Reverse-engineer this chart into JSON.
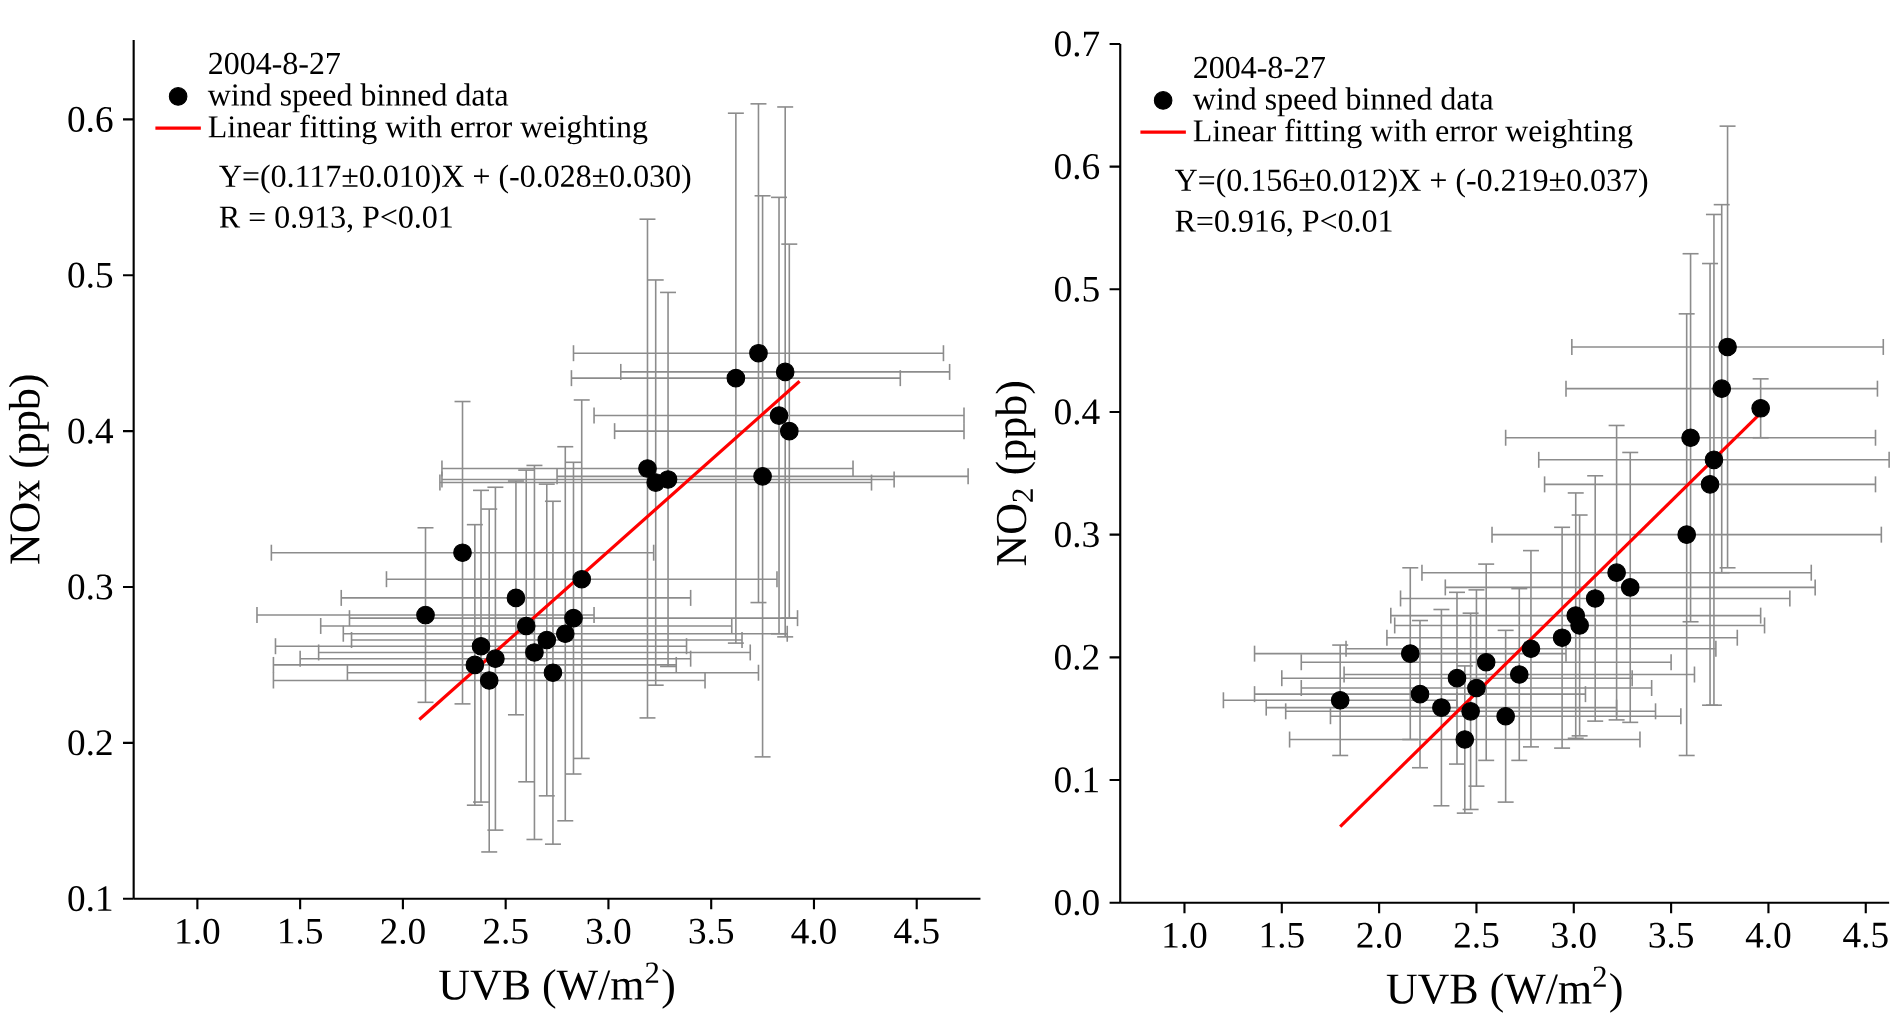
{
  "chart_data": [
    {
      "type": "scatter",
      "xlabel": "UVB (W/m$^{2}$)",
      "ylabel": "NOx (ppb)",
      "legend_title": "2004-8-27",
      "legend": "top left",
      "annotations": [
        "Y=(0.117±0.010)X + (-0.028±0.030)",
        "R = 0.913, P<0.01"
      ],
      "xlim": [
        0.69,
        4.81
      ],
      "ylim": [
        0.1,
        0.651
      ],
      "xticks": [
        {
          "value": 1,
          "label": "1.0"
        },
        1.5,
        {
          "value": 2,
          "label": "2.0"
        },
        2.5,
        {
          "value": 3,
          "label": "3.0"
        },
        3.5,
        {
          "value": 4,
          "label": "4.0"
        },
        4.5
      ],
      "yticks": [
        0.1,
        0.2,
        0.3,
        0.4,
        0.5,
        0.6
      ],
      "series": [
        {
          "name": "wind speed binned data",
          "marker": "circle",
          "color": "#000000",
          "x": [
            2.11,
            2.29,
            2.55,
            2.87,
            2.35,
            2.38,
            2.45,
            2.42,
            2.6,
            2.64,
            2.7,
            2.73,
            2.79,
            2.83,
            3.19,
            3.23,
            3.29,
            3.62,
            3.73,
            3.86,
            3.83,
            3.88,
            3.75
          ],
          "values": [
            0.282,
            0.322,
            0.293,
            0.305,
            0.25,
            0.262,
            0.254,
            0.24,
            0.275,
            0.258,
            0.266,
            0.245,
            0.27,
            0.28,
            0.376,
            0.367,
            0.369,
            0.434,
            0.45,
            0.438,
            0.41,
            0.4,
            0.371
          ],
          "xerrors": [
            0.82,
            0.93,
            0.85,
            0.95,
            0.98,
            1.0,
            0.95,
            1.05,
            1.0,
            1.05,
            0.95,
            1.0,
            1.08,
            1.09,
            1.0,
            1.05,
            1.1,
            0.8,
            0.9,
            0.8,
            0.9,
            0.85,
            1.0
          ],
          "errors": [
            0.056,
            0.097,
            0.075,
            0.115,
            0.09,
            0.1,
            0.11,
            0.11,
            0.1,
            0.12,
            0.1,
            0.11,
            0.12,
            0.1,
            0.16,
            0.13,
            0.12,
            0.17,
            0.16,
            0.17,
            0.14,
            0.12,
            0.18
          ]
        },
        {
          "name": "Linear fitting with error weighting",
          "type": "line",
          "marker": "none",
          "color": "#ff0000",
          "x": [
            2.08,
            3.93
          ],
          "values": [
            0.215,
            0.432
          ]
        }
      ]
    },
    {
      "type": "scatter",
      "xlabel": "UVB (W/m$^{2}$)",
      "ylabel": "NO$_{2}$ (ppb)",
      "legend_title": "2004-8-27",
      "legend": "top left",
      "annotations": [
        "Y=(0.156±0.012)X + (-0.219±0.037)",
        "R=0.916, P<0.01"
      ],
      "xlim": [
        0.67,
        4.62
      ],
      "ylim": [
        0,
        0.7
      ],
      "xticks": [
        {
          "value": 1,
          "label": "1.0"
        },
        1.5,
        {
          "value": 2,
          "label": "2.0"
        },
        2.5,
        {
          "value": 3,
          "label": "3.0"
        },
        3.5,
        {
          "value": 4,
          "label": "4.0"
        },
        4.5
      ],
      "yticks": [
        {
          "value": 0,
          "label": "0.0"
        },
        0.1,
        0.2,
        0.3,
        0.4,
        0.5,
        0.6,
        0.7
      ],
      "series": [
        {
          "name": "wind speed binned data",
          "marker": "circle",
          "color": "#000000",
          "x": [
            1.8,
            2.16,
            2.21,
            2.32,
            2.4,
            2.44,
            2.47,
            2.5,
            2.55,
            2.65,
            2.72,
            2.78,
            2.94,
            3.01,
            3.03,
            3.11,
            3.22,
            3.29,
            3.58,
            3.6,
            3.7,
            3.72,
            3.76,
            3.79,
            3.96
          ],
          "values": [
            0.165,
            0.203,
            0.17,
            0.159,
            0.183,
            0.133,
            0.156,
            0.175,
            0.196,
            0.152,
            0.186,
            0.207,
            0.216,
            0.234,
            0.226,
            0.248,
            0.269,
            0.257,
            0.3,
            0.379,
            0.341,
            0.361,
            0.419,
            0.453,
            0.403
          ],
          "xerrors": [
            0.6,
            0.8,
            0.85,
            0.9,
            0.9,
            0.9,
            0.95,
            0.9,
            0.95,
            0.9,
            0.9,
            0.95,
            0.9,
            0.95,
            0.95,
            1.0,
            1.0,
            0.95,
            1.0,
            0.95,
            0.85,
            0.9,
            0.8,
            0.8,
            null
          ],
          "errors": [
            0.045,
            0.07,
            0.06,
            0.08,
            0.07,
            0.06,
            0.08,
            0.08,
            0.08,
            0.07,
            0.07,
            0.08,
            0.09,
            0.1,
            0.09,
            0.1,
            0.12,
            0.11,
            0.18,
            0.15,
            0.18,
            0.2,
            0.15,
            0.18,
            0.024
          ]
        },
        {
          "name": "Linear fitting with error weighting",
          "type": "line",
          "marker": "none",
          "color": "#ff0000",
          "x": [
            1.8,
            3.96
          ],
          "values": [
            0.062,
            0.399
          ]
        }
      ]
    }
  ]
}
